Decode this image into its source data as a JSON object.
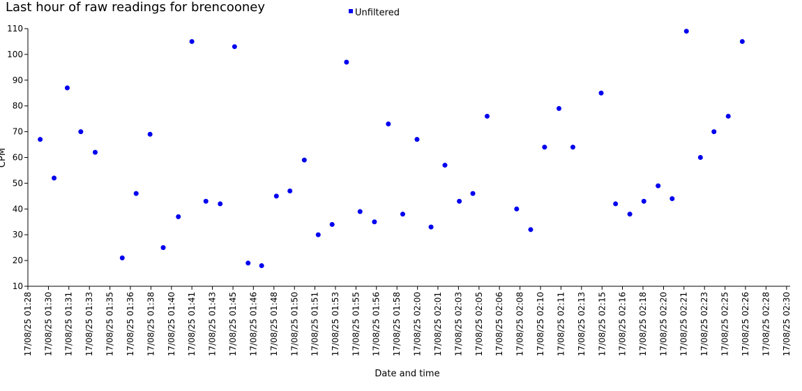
{
  "chart_data": {
    "type": "scatter",
    "title": "Last hour of raw readings for brencooney",
    "xlabel": "Date and time",
    "ylabel": "CPM",
    "ylim": [
      10,
      110
    ],
    "yticks": [
      10,
      20,
      30,
      40,
      50,
      60,
      70,
      80,
      90,
      100,
      110
    ],
    "xlim_minutes": [
      88,
      150
    ],
    "xticks": [
      {
        "minute": 88.0,
        "label": "17/08/25 01:28"
      },
      {
        "minute": 89.67,
        "label": "17/08/25 01:30"
      },
      {
        "minute": 91.33,
        "label": "17/08/25 01:31"
      },
      {
        "minute": 93.0,
        "label": "17/08/25 01:33"
      },
      {
        "minute": 94.67,
        "label": "17/08/25 01:35"
      },
      {
        "minute": 96.33,
        "label": "17/08/25 01:36"
      },
      {
        "minute": 98.0,
        "label": "17/08/25 01:38"
      },
      {
        "minute": 99.67,
        "label": "17/08/25 01:40"
      },
      {
        "minute": 101.33,
        "label": "17/08/25 01:41"
      },
      {
        "minute": 103.0,
        "label": "17/08/25 01:43"
      },
      {
        "minute": 104.67,
        "label": "17/08/25 01:45"
      },
      {
        "minute": 106.33,
        "label": "17/08/25 01:46"
      },
      {
        "minute": 108.0,
        "label": "17/08/25 01:48"
      },
      {
        "minute": 109.67,
        "label": "17/08/25 01:50"
      },
      {
        "minute": 111.33,
        "label": "17/08/25 01:51"
      },
      {
        "minute": 113.0,
        "label": "17/08/25 01:53"
      },
      {
        "minute": 114.67,
        "label": "17/08/25 01:55"
      },
      {
        "minute": 116.33,
        "label": "17/08/25 01:56"
      },
      {
        "minute": 118.0,
        "label": "17/08/25 01:58"
      },
      {
        "minute": 119.67,
        "label": "17/08/25 02:00"
      },
      {
        "minute": 121.33,
        "label": "17/08/25 02:01"
      },
      {
        "minute": 123.0,
        "label": "17/08/25 02:03"
      },
      {
        "minute": 124.67,
        "label": "17/08/25 02:05"
      },
      {
        "minute": 126.33,
        "label": "17/08/25 02:06"
      },
      {
        "minute": 128.0,
        "label": "17/08/25 02:08"
      },
      {
        "minute": 129.67,
        "label": "17/08/25 02:10"
      },
      {
        "minute": 131.33,
        "label": "17/08/25 02:11"
      },
      {
        "minute": 133.0,
        "label": "17/08/25 02:13"
      },
      {
        "minute": 134.67,
        "label": "17/08/25 02:15"
      },
      {
        "minute": 136.33,
        "label": "17/08/25 02:16"
      },
      {
        "minute": 138.0,
        "label": "17/08/25 02:18"
      },
      {
        "minute": 139.67,
        "label": "17/08/25 02:20"
      },
      {
        "minute": 141.33,
        "label": "17/08/25 02:21"
      },
      {
        "minute": 143.0,
        "label": "17/08/25 02:23"
      },
      {
        "minute": 144.67,
        "label": "17/08/25 02:25"
      },
      {
        "minute": 146.33,
        "label": "17/08/25 02:26"
      },
      {
        "minute": 148.0,
        "label": "17/08/25 02:28"
      },
      {
        "minute": 149.67,
        "label": "17/08/25 02:30"
      }
    ],
    "series": [
      {
        "name": "Unfiltered",
        "color": "#0000ee",
        "points": [
          {
            "x": 89.0,
            "y": 67
          },
          {
            "x": 90.13,
            "y": 52
          },
          {
            "x": 91.2,
            "y": 87
          },
          {
            "x": 92.3,
            "y": 70
          },
          {
            "x": 93.47,
            "y": 62
          },
          {
            "x": 95.67,
            "y": 21
          },
          {
            "x": 96.8,
            "y": 46
          },
          {
            "x": 97.93,
            "y": 69
          },
          {
            "x": 99.0,
            "y": 25
          },
          {
            "x": 100.23,
            "y": 37
          },
          {
            "x": 101.33,
            "y": 105
          },
          {
            "x": 102.47,
            "y": 43
          },
          {
            "x": 103.63,
            "y": 42
          },
          {
            "x": 104.8,
            "y": 103
          },
          {
            "x": 105.9,
            "y": 19
          },
          {
            "x": 107.0,
            "y": 18
          },
          {
            "x": 108.2,
            "y": 45
          },
          {
            "x": 109.3,
            "y": 47
          },
          {
            "x": 110.47,
            "y": 59
          },
          {
            "x": 111.6,
            "y": 30
          },
          {
            "x": 112.73,
            "y": 34
          },
          {
            "x": 113.9,
            "y": 97
          },
          {
            "x": 115.0,
            "y": 39
          },
          {
            "x": 116.17,
            "y": 35
          },
          {
            "x": 117.3,
            "y": 73
          },
          {
            "x": 118.47,
            "y": 38
          },
          {
            "x": 119.63,
            "y": 67
          },
          {
            "x": 120.77,
            "y": 33
          },
          {
            "x": 121.9,
            "y": 57
          },
          {
            "x": 123.07,
            "y": 43
          },
          {
            "x": 124.17,
            "y": 46
          },
          {
            "x": 125.33,
            "y": 76
          },
          {
            "x": 127.73,
            "y": 40
          },
          {
            "x": 128.87,
            "y": 32
          },
          {
            "x": 130.0,
            "y": 64
          },
          {
            "x": 131.17,
            "y": 79
          },
          {
            "x": 132.3,
            "y": 64
          },
          {
            "x": 134.6,
            "y": 85
          },
          {
            "x": 135.77,
            "y": 42
          },
          {
            "x": 136.93,
            "y": 38
          },
          {
            "x": 138.07,
            "y": 43
          },
          {
            "x": 139.23,
            "y": 49
          },
          {
            "x": 140.37,
            "y": 44
          },
          {
            "x": 141.53,
            "y": 109
          },
          {
            "x": 142.67,
            "y": 60
          },
          {
            "x": 143.77,
            "y": 70
          },
          {
            "x": 144.93,
            "y": 76
          },
          {
            "x": 146.07,
            "y": 105
          }
        ]
      }
    ],
    "legend": {
      "position": "top-center",
      "entries": [
        "Unfiltered"
      ]
    },
    "grid": false
  }
}
